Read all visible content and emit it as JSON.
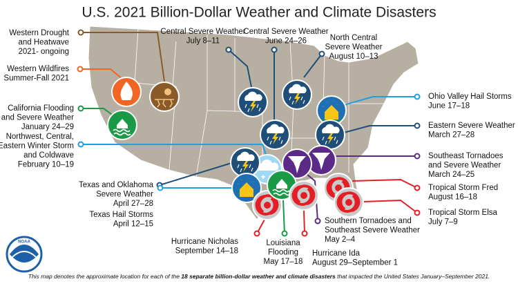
{
  "title": "U.S. 2021 Billion-Dollar Weather and Climate Disasters",
  "logo": "NOAA",
  "events": [
    {
      "lines": [
        "Western Drought",
        "and Heatwave",
        "2021- ongoing"
      ],
      "color": "#8b5a2b"
    },
    {
      "lines": [
        "Western Wildfires",
        "Summer-Fall 2021"
      ],
      "color": "#f26522"
    },
    {
      "lines": [
        "California Flooding",
        "and Severe Weather",
        "January 24–29"
      ],
      "color": "#1a9a46"
    },
    {
      "lines": [
        "Northwest, Central,",
        "Eastern Winter Storm",
        "and Coldwave",
        "February 10–19"
      ],
      "color": "#1ea0dc"
    },
    {
      "lines": [
        "Central Severe Weather",
        "July 8–11"
      ],
      "color": "#1e4f7a"
    },
    {
      "lines": [
        "Central Severe Weather",
        "June 24–26"
      ],
      "color": "#1e4f7a"
    },
    {
      "lines": [
        "North Central",
        "Severe Weather",
        "August 10–13"
      ],
      "color": "#1e4f7a"
    },
    {
      "lines": [
        "Ohio Valley Hail Storms",
        "June 17–18"
      ],
      "color": "#1ea0dc"
    },
    {
      "lines": [
        "Eastern Severe Weather",
        "March 27–28"
      ],
      "color": "#1e4f7a"
    },
    {
      "lines": [
        "Southeast Tornadoes",
        "and Severe Weather",
        "March 24–25"
      ],
      "color": "#5b2a86"
    },
    {
      "lines": [
        "Texas and Oklahoma",
        "Severe Weather",
        "April 27–28"
      ],
      "color": "#1e4f7a"
    },
    {
      "lines": [
        "Texas Hail Storms",
        "April 12–15"
      ],
      "color": "#1ea0dc"
    },
    {
      "lines": [
        "Tropical Storm Fred",
        "August 16–18"
      ],
      "color": "#e31e24"
    },
    {
      "lines": [
        "Tropical Storm Elsa",
        "July 7–9"
      ],
      "color": "#e31e24"
    },
    {
      "lines": [
        "Southern Tornadoes and",
        "Southeast Severe Weather",
        "May 2–4"
      ],
      "color": "#5b2a86"
    },
    {
      "lines": [
        "Hurricane Nicholas",
        "September 14–18"
      ],
      "color": "#e31e24"
    },
    {
      "lines": [
        "Louisiana",
        "Flooding",
        "May 17–18"
      ],
      "color": "#1a9a46"
    },
    {
      "lines": [
        "Hurricane Ida",
        "August 29–September 1"
      ],
      "color": "#e31e24"
    }
  ],
  "footnote": {
    "before": "This map denotes the approximate location for each of the ",
    "emphasis": "18 separate billion-dollar weather and climate disasters",
    "after": " that impacted the United States January–September 2021."
  }
}
